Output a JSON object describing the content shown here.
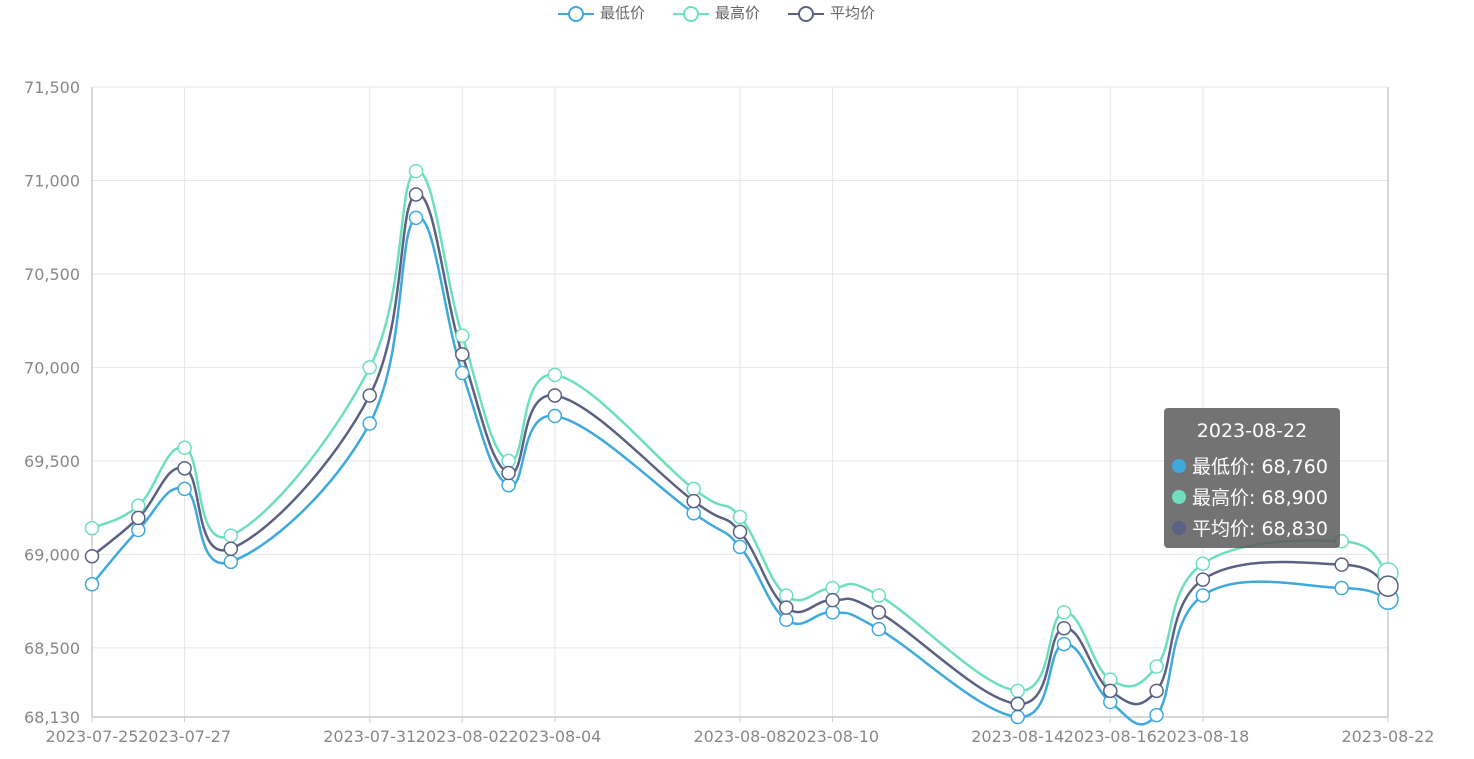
{
  "chart_data": {
    "type": "line",
    "x": [
      "2023-07-25",
      "2023-07-26",
      "2023-07-27",
      "2023-07-28",
      "2023-07-31",
      "2023-08-01",
      "2023-08-02",
      "2023-08-03",
      "2023-08-04",
      "2023-08-07",
      "2023-08-08",
      "2023-08-09",
      "2023-08-10",
      "2023-08-11",
      "2023-08-14",
      "2023-08-15",
      "2023-08-16",
      "2023-08-17",
      "2023-08-18",
      "2023-08-21",
      "2023-08-22"
    ],
    "x_tick_labels": [
      "2023-07-25",
      "2023-07-27",
      "2023-07-31",
      "2023-08-02",
      "2023-08-04",
      "2023-08-08",
      "2023-08-10",
      "2023-08-14",
      "2023-08-16",
      "2023-08-18",
      "2023-08-22"
    ],
    "y_tick_labels": [
      "71,500",
      "71,000",
      "70,500",
      "70,000",
      "69,500",
      "69,000",
      "68,500",
      "68,130"
    ],
    "ylim": [
      68130,
      71500
    ],
    "series": [
      {
        "name": "最低价",
        "color": "#3fa9dd",
        "values": [
          68840,
          69130,
          69350,
          68960,
          69700,
          70800,
          69970,
          69370,
          69740,
          69220,
          69040,
          68650,
          68690,
          68600,
          68130,
          68520,
          68210,
          68140,
          68780,
          68820,
          68760
        ]
      },
      {
        "name": "最高价",
        "color": "#6ddfbf",
        "values": [
          69140,
          69260,
          69570,
          69100,
          70000,
          71050,
          70170,
          69500,
          69960,
          69350,
          69200,
          68780,
          68820,
          68780,
          68270,
          68690,
          68330,
          68400,
          68950,
          69070,
          68900
        ]
      },
      {
        "name": "平均价",
        "color": "#5b6183",
        "values": [
          68990,
          69195,
          69460,
          69030,
          69850,
          70925,
          70070,
          69435,
          69850,
          69285,
          69120,
          68715,
          68755,
          68690,
          68200,
          68605,
          68270,
          68270,
          68865,
          68945,
          68830
        ]
      }
    ],
    "grid": true,
    "legend_position": "top-center"
  },
  "tooltip": {
    "title": "2023-08-22",
    "rows": [
      {
        "label": "最低价: 68,760",
        "color": "#3fa9dd"
      },
      {
        "label": "最高价: 68,900",
        "color": "#6ddfbf"
      },
      {
        "label": "平均价: 68,830",
        "color": "#5b6183"
      }
    ]
  }
}
